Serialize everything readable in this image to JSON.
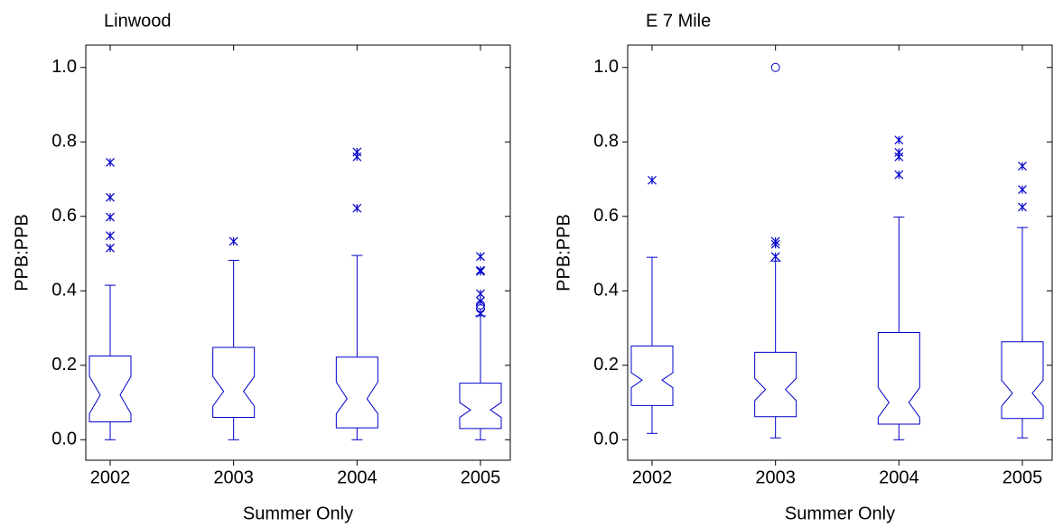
{
  "chart_data": [
    {
      "type": "box",
      "title": "Linwood",
      "x_label": "Summer Only",
      "y_label": "PPB:PPB",
      "color": "#0000cc",
      "categories": [
        "2002",
        "2003",
        "2004",
        "2005"
      ],
      "ylim": [
        -0.055,
        1.06
      ],
      "yticks": [
        {
          "value": 0,
          "label": "0.0"
        },
        {
          "value": 0.2,
          "label": "0.2"
        },
        {
          "value": 0.4,
          "label": "0.4"
        },
        {
          "value": 0.6,
          "label": "0.6"
        },
        {
          "value": 0.8,
          "label": "0.8"
        },
        {
          "value": 1,
          "label": "1.0"
        }
      ],
      "boxes": [
        {
          "whisker_low": 0,
          "q1": 0.048,
          "notch_low": 0.07,
          "median": 0.12,
          "notch_high": 0.17,
          "q3": 0.225,
          "whisker_high": 0.415,
          "outliers": [
            0.515,
            0.548,
            0.598,
            0.651,
            0.745
          ],
          "far_outliers": []
        },
        {
          "whisker_low": 0,
          "q1": 0.06,
          "notch_low": 0.09,
          "median": 0.13,
          "notch_high": 0.17,
          "q3": 0.248,
          "whisker_high": 0.482,
          "outliers": [
            0.533
          ],
          "far_outliers": []
        },
        {
          "whisker_low": 0,
          "q1": 0.032,
          "notch_low": 0.07,
          "median": 0.11,
          "notch_high": 0.155,
          "q3": 0.222,
          "whisker_high": 0.495,
          "outliers": [
            0.622,
            0.76,
            0.773
          ],
          "far_outliers": []
        },
        {
          "whisker_low": 0,
          "q1": 0.03,
          "notch_low": 0.06,
          "median": 0.08,
          "notch_high": 0.1,
          "q3": 0.152,
          "whisker_high": 0.333,
          "outliers": [
            0.34,
            0.372,
            0.392,
            0.452,
            0.455,
            0.492
          ],
          "far_outliers": [
            0.352,
            0.362
          ]
        }
      ]
    },
    {
      "type": "box",
      "title": "E 7 Mile",
      "x_label": "Summer Only",
      "y_label": "PPB:PPB",
      "color": "#0000cc",
      "categories": [
        "2002",
        "2003",
        "2004",
        "2005"
      ],
      "ylim": [
        -0.055,
        1.06
      ],
      "yticks": [
        {
          "value": 0,
          "label": "0.0"
        },
        {
          "value": 0.2,
          "label": "0.2"
        },
        {
          "value": 0.4,
          "label": "0.4"
        },
        {
          "value": 0.6,
          "label": "0.6"
        },
        {
          "value": 0.8,
          "label": "0.8"
        },
        {
          "value": 1,
          "label": "1.0"
        }
      ],
      "boxes": [
        {
          "whisker_low": 0.017,
          "q1": 0.092,
          "notch_low": 0.14,
          "median": 0.16,
          "notch_high": 0.18,
          "q3": 0.252,
          "whisker_high": 0.49,
          "outliers": [
            0.697
          ],
          "far_outliers": []
        },
        {
          "whisker_low": 0.005,
          "q1": 0.062,
          "notch_low": 0.105,
          "median": 0.135,
          "notch_high": 0.165,
          "q3": 0.235,
          "whisker_high": 0.48,
          "outliers": [
            0.492,
            0.525,
            0.533
          ],
          "far_outliers": [
            1.0
          ]
        },
        {
          "whisker_low": 0,
          "q1": 0.042,
          "notch_low": 0.06,
          "median": 0.1,
          "notch_high": 0.14,
          "q3": 0.288,
          "whisker_high": 0.598,
          "outliers": [
            0.712,
            0.76,
            0.772,
            0.805
          ],
          "far_outliers": []
        },
        {
          "whisker_low": 0.005,
          "q1": 0.057,
          "notch_low": 0.09,
          "median": 0.125,
          "notch_high": 0.16,
          "q3": 0.263,
          "whisker_high": 0.57,
          "outliers": [
            0.625,
            0.672,
            0.735
          ],
          "far_outliers": []
        }
      ]
    }
  ]
}
